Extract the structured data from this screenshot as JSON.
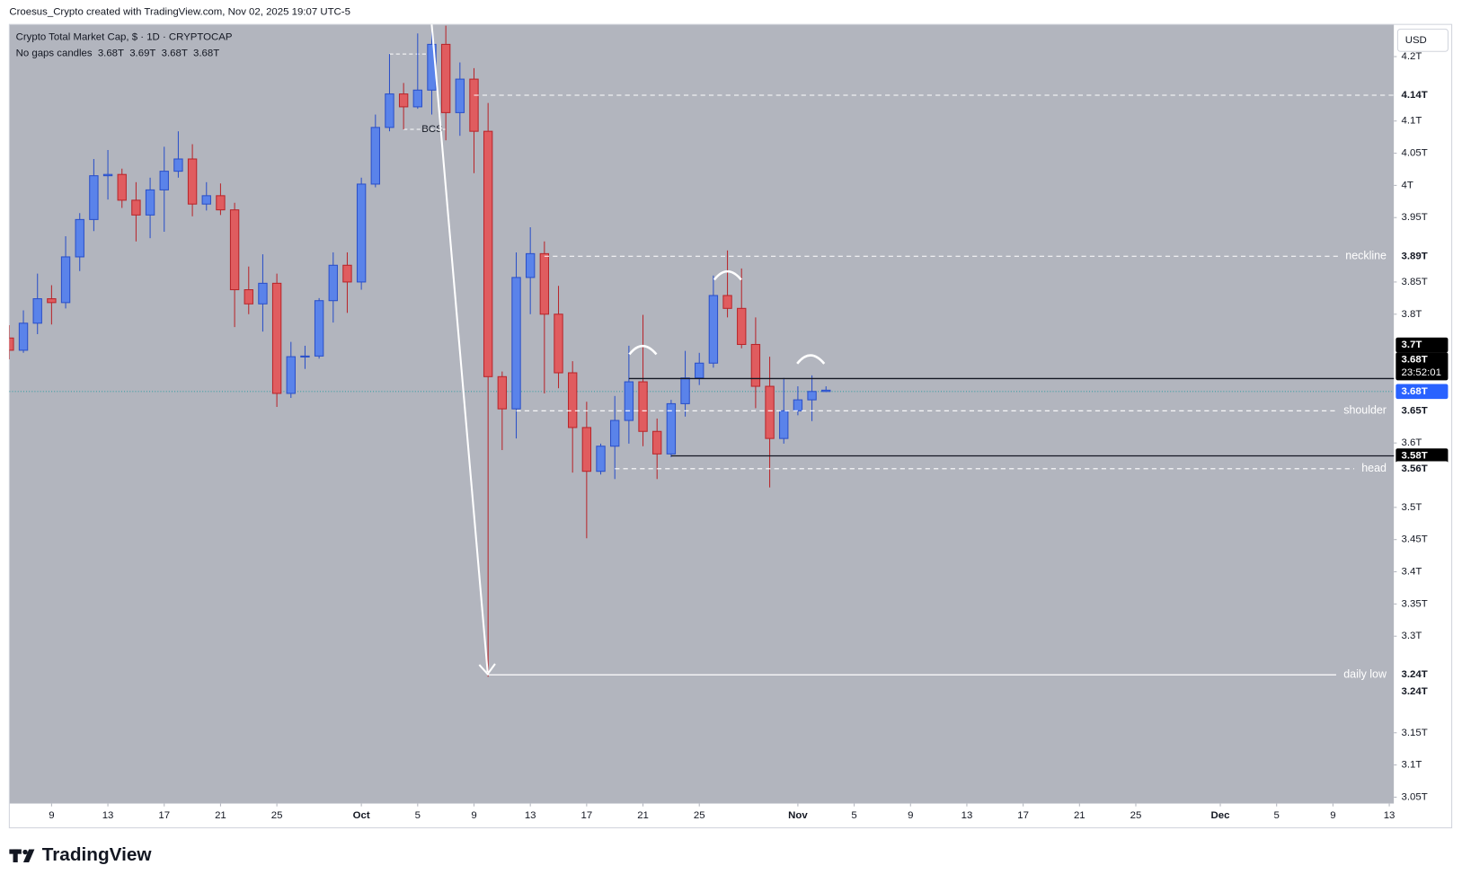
{
  "chart_data": {
    "type": "candlestick",
    "credit": "Croesus_Crypto created with TradingView.com, Nov 02, 2025 19:07 UTC-5",
    "title": "Crypto Total Market Cap, $ · 1D · CRYPTOCAP",
    "legend": {
      "name": "No gaps candles",
      "color": "#2962ff",
      "ohlc": [
        {
          "value": 3.68,
          "label": "3.68T"
        },
        {
          "value": 3.69,
          "label": "3.69T"
        },
        {
          "value": 3.68,
          "label": "3.68T"
        },
        {
          "value": 3.68,
          "label": "3.68T"
        }
      ]
    },
    "currency": "USD",
    "brand": "TradingView",
    "background": "#b2b5be",
    "up_color": "#5a83ea",
    "up_border": "#2b50c8",
    "down_color": "#e05c5f",
    "down_border": "#b8262b",
    "xlim": [
      "2025-09-06",
      "2025-12-13"
    ],
    "ylim": [
      3.04,
      4.25
    ],
    "xticks": [
      {
        "value": "2025-09-09",
        "label": "9"
      },
      {
        "value": "2025-09-13",
        "label": "13"
      },
      {
        "value": "2025-09-17",
        "label": "17"
      },
      {
        "value": "2025-09-21",
        "label": "21"
      },
      {
        "value": "2025-09-25",
        "label": "25"
      },
      {
        "value": "2025-10-01",
        "label": "Oct"
      },
      {
        "value": "2025-10-05",
        "label": "5"
      },
      {
        "value": "2025-10-09",
        "label": "9"
      },
      {
        "value": "2025-10-13",
        "label": "13"
      },
      {
        "value": "2025-10-17",
        "label": "17"
      },
      {
        "value": "2025-10-21",
        "label": "21"
      },
      {
        "value": "2025-10-25",
        "label": "25"
      },
      {
        "value": "2025-11-01",
        "label": "Nov"
      },
      {
        "value": "2025-11-05",
        "label": "5"
      },
      {
        "value": "2025-11-09",
        "label": "9"
      },
      {
        "value": "2025-11-13",
        "label": "13"
      },
      {
        "value": "2025-11-17",
        "label": "17"
      },
      {
        "value": "2025-11-21",
        "label": "21"
      },
      {
        "value": "2025-11-25",
        "label": "25"
      },
      {
        "value": "2025-12-01",
        "label": "Dec"
      },
      {
        "value": "2025-12-05",
        "label": "5"
      },
      {
        "value": "2025-12-09",
        "label": "9"
      },
      {
        "value": "2025-12-13",
        "label": "13"
      }
    ],
    "yticks": [
      {
        "value": 4.2,
        "label": "4.2T"
      },
      {
        "value": 4.1,
        "label": "4.1T"
      },
      {
        "value": 4.05,
        "label": "4.05T"
      },
      {
        "value": 4,
        "label": "4T"
      },
      {
        "value": 3.95,
        "label": "3.95T"
      },
      {
        "value": 3.85,
        "label": "3.85T"
      },
      {
        "value": 3.8,
        "label": "3.8T"
      },
      {
        "value": 3.6,
        "label": "3.6T"
      },
      {
        "value": 3.5,
        "label": "3.5T"
      },
      {
        "value": 3.45,
        "label": "3.45T"
      },
      {
        "value": 3.4,
        "label": "3.4T"
      },
      {
        "value": 3.35,
        "label": "3.35T"
      },
      {
        "value": 3.3,
        "label": "3.3T"
      },
      {
        "value": 3.15,
        "label": "3.15T"
      },
      {
        "value": 3.1,
        "label": "3.1T"
      },
      {
        "value": 3.05,
        "label": "3.05T"
      }
    ],
    "candles": {
      "x": [
        "2025-09-06",
        "2025-09-07",
        "2025-09-08",
        "2025-09-09",
        "2025-09-10",
        "2025-09-11",
        "2025-09-12",
        "2025-09-13",
        "2025-09-14",
        "2025-09-15",
        "2025-09-16",
        "2025-09-17",
        "2025-09-18",
        "2025-09-19",
        "2025-09-20",
        "2025-09-21",
        "2025-09-22",
        "2025-09-23",
        "2025-09-24",
        "2025-09-25",
        "2025-09-26",
        "2025-09-27",
        "2025-09-28",
        "2025-09-29",
        "2025-09-30",
        "2025-10-01",
        "2025-10-02",
        "2025-10-03",
        "2025-10-04",
        "2025-10-05",
        "2025-10-06",
        "2025-10-07",
        "2025-10-08",
        "2025-10-09",
        "2025-10-10",
        "2025-10-11",
        "2025-10-12",
        "2025-10-13",
        "2025-10-14",
        "2025-10-15",
        "2025-10-16",
        "2025-10-17",
        "2025-10-18",
        "2025-10-19",
        "2025-10-20",
        "2025-10-21",
        "2025-10-22",
        "2025-10-23",
        "2025-10-24",
        "2025-10-25",
        "2025-10-26",
        "2025-10-27",
        "2025-10-28",
        "2025-10-29",
        "2025-10-30",
        "2025-10-31",
        "2025-11-01",
        "2025-11-02",
        "2025-11-03"
      ],
      "open": [
        3.763,
        3.744,
        3.786,
        3.824,
        3.818,
        3.889,
        3.947,
        4.015,
        4.017,
        3.977,
        3.954,
        3.993,
        4.022,
        4.041,
        3.971,
        3.984,
        3.962,
        3.838,
        3.816,
        3.848,
        3.677,
        3.734,
        3.735,
        3.821,
        3.876,
        3.85,
        4.002,
        4.09,
        4.142,
        4.122,
        4.148,
        4.219,
        4.113,
        4.165,
        4.084,
        3.703,
        3.653,
        3.857,
        3.894,
        3.8,
        3.709,
        3.624,
        3.556,
        3.595,
        3.635,
        3.695,
        3.618,
        3.583,
        3.661,
        3.701,
        3.724,
        3.829,
        3.809,
        3.753,
        3.688,
        3.607,
        3.65,
        3.667,
        3.68
      ],
      "high": [
        3.783,
        3.806,
        3.863,
        3.845,
        3.921,
        3.957,
        4.041,
        4.055,
        4.026,
        4.005,
        4.012,
        4.06,
        4.084,
        4.064,
        4.005,
        4.003,
        3.973,
        3.874,
        3.893,
        3.863,
        3.757,
        3.751,
        3.825,
        3.896,
        3.896,
        4.012,
        4.11,
        4.204,
        4.159,
        4.236,
        4.248,
        4.248,
        4.191,
        4.182,
        4.128,
        3.711,
        3.896,
        3.935,
        3.913,
        3.844,
        3.727,
        3.664,
        3.599,
        3.673,
        3.751,
        3.799,
        3.638,
        3.667,
        3.743,
        3.74,
        3.86,
        3.899,
        3.871,
        3.795,
        3.734,
        3.701,
        3.688,
        3.705,
        3.688
      ],
      "low": [
        3.73,
        3.74,
        3.769,
        3.784,
        3.809,
        3.867,
        3.929,
        3.978,
        3.965,
        3.913,
        3.918,
        3.928,
        4.012,
        3.952,
        3.961,
        3.954,
        3.78,
        3.8,
        3.773,
        3.656,
        3.67,
        3.715,
        3.731,
        3.787,
        3.802,
        3.838,
        3.997,
        4.084,
        4.087,
        4.119,
        4.11,
        4.07,
        4.077,
        4.019,
        3.237,
        3.589,
        3.607,
        3.8,
        3.677,
        3.685,
        3.554,
        3.452,
        3.551,
        3.544,
        3.599,
        3.595,
        3.544,
        3.578,
        3.641,
        3.69,
        3.717,
        3.795,
        3.747,
        3.654,
        3.531,
        3.599,
        3.643,
        3.634,
        3.679
      ],
      "close": [
        3.744,
        3.786,
        3.824,
        3.818,
        3.889,
        3.947,
        4.015,
        4.017,
        3.977,
        3.954,
        3.993,
        4.022,
        4.041,
        3.971,
        3.984,
        3.962,
        3.838,
        3.816,
        3.848,
        3.677,
        3.734,
        3.735,
        3.821,
        3.876,
        3.85,
        4.002,
        4.09,
        4.142,
        4.122,
        4.148,
        4.219,
        4.113,
        4.165,
        4.084,
        3.703,
        3.653,
        3.857,
        3.894,
        3.8,
        3.709,
        3.624,
        3.556,
        3.595,
        3.635,
        3.695,
        3.618,
        3.583,
        3.661,
        3.701,
        3.724,
        3.829,
        3.809,
        3.753,
        3.688,
        3.607,
        3.65,
        3.667,
        3.68,
        3.682
      ]
    },
    "levels": [
      {
        "value": 4.14,
        "label": "4.14T",
        "from": "2025-10-09",
        "line": "dashed",
        "color": "#ffffff",
        "bg": "#ffffff"
      },
      {
        "value": 3.89,
        "label": "3.89T",
        "name": "neckline",
        "from": "2025-10-14",
        "line": "dashed",
        "color": "#ffffff",
        "bg": "#ffffff"
      },
      {
        "value": 3.7,
        "label": "3.7T",
        "from": "2025-10-20",
        "line": "solid",
        "color": "#131722",
        "bg": "#000000"
      },
      {
        "value": 3.65,
        "label": "3.65T",
        "name": "shoulder",
        "from": "2025-10-12",
        "line": "dashed",
        "color": "#ffffff",
        "bg": "#ffffff"
      },
      {
        "value": 3.58,
        "label": "3.58T",
        "from": "2025-10-23",
        "line": "solid",
        "color": "#131722",
        "bg": "#000000"
      },
      {
        "value": 3.56,
        "label": "3.56T",
        "name": "head",
        "from": "2025-10-19",
        "line": "dashed",
        "color": "#ffffff",
        "bg": "#ffffff"
      },
      {
        "value": 3.24,
        "label": "3.24T",
        "name": "daily low",
        "from": "2025-10-10",
        "line": "solid",
        "color": "#ffffff",
        "bg": "#ffffff"
      }
    ],
    "price_labels": [
      {
        "value": 3.68,
        "label": "3.68T",
        "countdown": "23:52:01",
        "bg": "#000000"
      },
      {
        "value": 3.68,
        "label": "3.68T",
        "bg": "#2962ff",
        "line": "dotted",
        "color": "#3d9ea6"
      },
      {
        "value": 3.24,
        "label": "3.24T",
        "bg": "#ffffff"
      }
    ],
    "segments": [
      {
        "value": 4.204,
        "from": "2025-10-03",
        "to": "2025-10-06"
      },
      {
        "value": 4.087,
        "from": "2025-10-04",
        "to": "2025-10-07",
        "text": "BCS"
      }
    ]
  }
}
